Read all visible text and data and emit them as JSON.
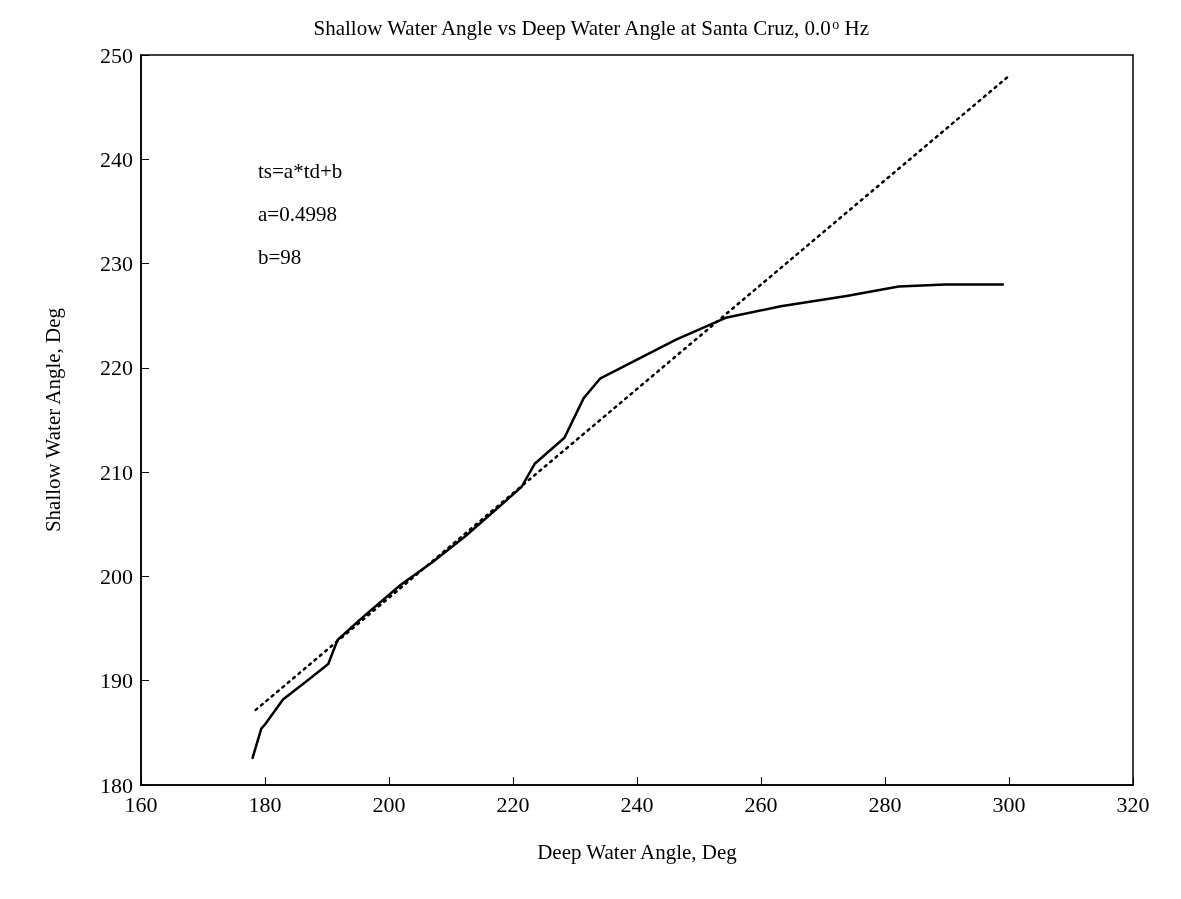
{
  "chart_data": {
    "type": "line",
    "title": "Shallow Water Angle vs Deep Water Angle at Santa Cruz, 0.0$^{o}$ Hz",
    "xlabel": "Deep Water Angle, Deg",
    "ylabel": "Shallow Water Angle, Deg",
    "annotations": [
      "ts=a*td+b",
      "a=0.4998",
      "b=98"
    ],
    "xlim": [
      160,
      320
    ],
    "xticks": [
      160,
      180,
      200,
      220,
      240,
      260,
      280,
      300,
      320
    ],
    "ylim": [
      180,
      250
    ],
    "yticks": [
      180,
      190,
      200,
      210,
      220,
      230,
      240,
      250
    ],
    "grid": false,
    "legend": false,
    "marker": "none",
    "series": [
      {
        "color": "#000000",
        "line_style": "solid",
        "x": [
          178,
          179.4,
          180,
          182.9,
          187,
          190.2,
          191.7,
          195.6,
          201.9,
          207.1,
          212.4,
          217.8,
          221.4,
          223.5,
          228.3,
          231.4,
          234.1,
          240,
          246.3,
          254.3,
          263.2,
          273.8,
          282.2,
          289.7,
          299
        ],
        "values": [
          182.6,
          185.4,
          185.8,
          188.2,
          190.1,
          191.6,
          193.9,
          196,
          199.2,
          201.4,
          203.9,
          206.7,
          208.6,
          210.8,
          213.3,
          217.1,
          219,
          220.8,
          222.7,
          224.8,
          225.9,
          226.9,
          227.8,
          228,
          228
        ]
      },
      {
        "color": "#000000",
        "line_style": "dotted",
        "x": [
          178.5,
          300
        ],
        "values": [
          187.2,
          248
        ]
      }
    ]
  }
}
